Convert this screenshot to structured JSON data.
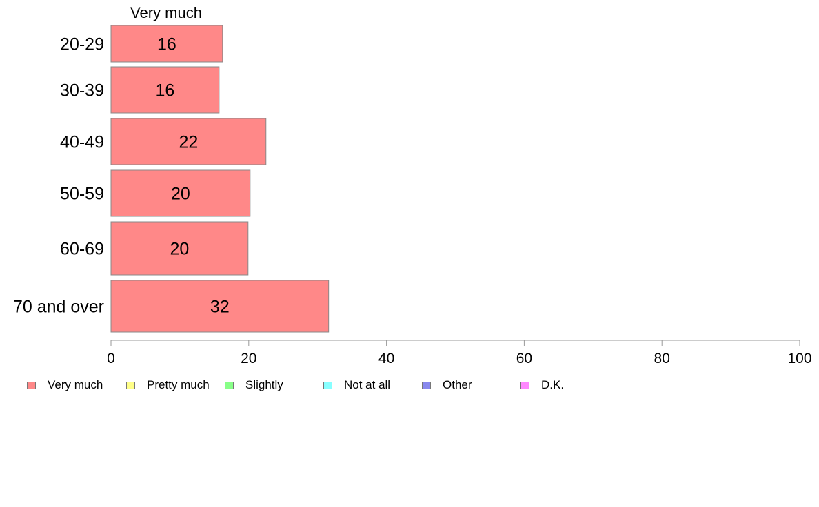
{
  "chart_data": {
    "type": "bar",
    "orientation": "horizontal",
    "stacked": true,
    "title": "",
    "xlabel": "",
    "ylabel": "",
    "xlim": [
      0,
      100
    ],
    "x_ticks": [
      0,
      20,
      40,
      60,
      80,
      100
    ],
    "categories": [
      "20-29",
      "30-39",
      "40-49",
      "50-59",
      "60-69",
      "70 and over"
    ],
    "series": [
      {
        "name": "Very much",
        "color": "#ff8888",
        "values": [
          16.2,
          15.7,
          22.5,
          20.2,
          19.9,
          31.6
        ],
        "labels": [
          "16",
          "16",
          "22",
          "20",
          "20",
          "32"
        ]
      }
    ],
    "segment_header": "Very much",
    "grid": false,
    "legend_position": "bottom-left",
    "legend": [
      {
        "name": "Very much",
        "color": "#ff8888"
      },
      {
        "name": "Pretty much",
        "color": "#ffff88"
      },
      {
        "name": "Slightly",
        "color": "#88ff88"
      },
      {
        "name": "Not at all",
        "color": "#88ffff"
      },
      {
        "name": "Other",
        "color": "#8888ee"
      },
      {
        "name": "D.K.",
        "color": "#ff88ff"
      }
    ]
  }
}
